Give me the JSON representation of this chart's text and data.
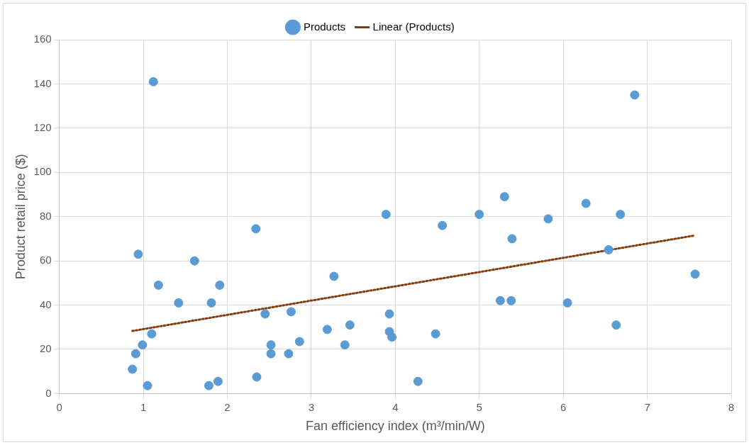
{
  "chart_data": {
    "type": "scatter",
    "xlabel": "Fan efficiency index (m³/min/W)",
    "ylabel": "Product retail price ($)",
    "xlim": [
      0,
      8
    ],
    "xticks": [
      0,
      1,
      2,
      3,
      4,
      5,
      6,
      7,
      8
    ],
    "ylim": [
      0,
      160
    ],
    "yticks": [
      0,
      20,
      40,
      60,
      80,
      100,
      120,
      140,
      160
    ],
    "grid": true,
    "legend": "top",
    "series": [
      {
        "name": "Products",
        "type": "scatter",
        "marker": "circle",
        "color": "#5b9bd5",
        "x": [
          1.12,
          6.85,
          0.94,
          1.61,
          1.18,
          1.42,
          1.1,
          0.99,
          0.91,
          0.87,
          1.05,
          1.81,
          1.91,
          1.78,
          1.89,
          2.34,
          2.45,
          2.35,
          2.52,
          2.52,
          2.73,
          2.76,
          2.86,
          3.19,
          3.27,
          3.4,
          3.46,
          3.89,
          3.93,
          3.93,
          3.96,
          4.27,
          4.48,
          4.56,
          5.0,
          5.3,
          5.25,
          5.38,
          5.39,
          5.82,
          6.05,
          6.27,
          6.54,
          6.63,
          6.68,
          7.57
        ],
        "values": [
          141,
          135,
          63,
          60,
          49,
          41,
          27,
          22,
          18,
          11,
          3.6,
          41,
          49,
          3.6,
          5.5,
          74.5,
          36,
          7.5,
          22,
          18,
          18,
          37,
          23.5,
          29,
          53,
          22,
          31,
          81,
          36,
          28,
          25.5,
          5.5,
          27,
          76,
          81,
          89,
          42,
          42,
          70,
          79,
          41,
          86,
          65,
          31,
          81,
          54
        ]
      },
      {
        "name": "Linear (Products)",
        "type": "line",
        "color": "#843c0c",
        "line_style": "dotted",
        "marker": "none",
        "x": [
          0.87,
          7.57
        ],
        "values": [
          28.3,
          71.5
        ]
      }
    ]
  }
}
